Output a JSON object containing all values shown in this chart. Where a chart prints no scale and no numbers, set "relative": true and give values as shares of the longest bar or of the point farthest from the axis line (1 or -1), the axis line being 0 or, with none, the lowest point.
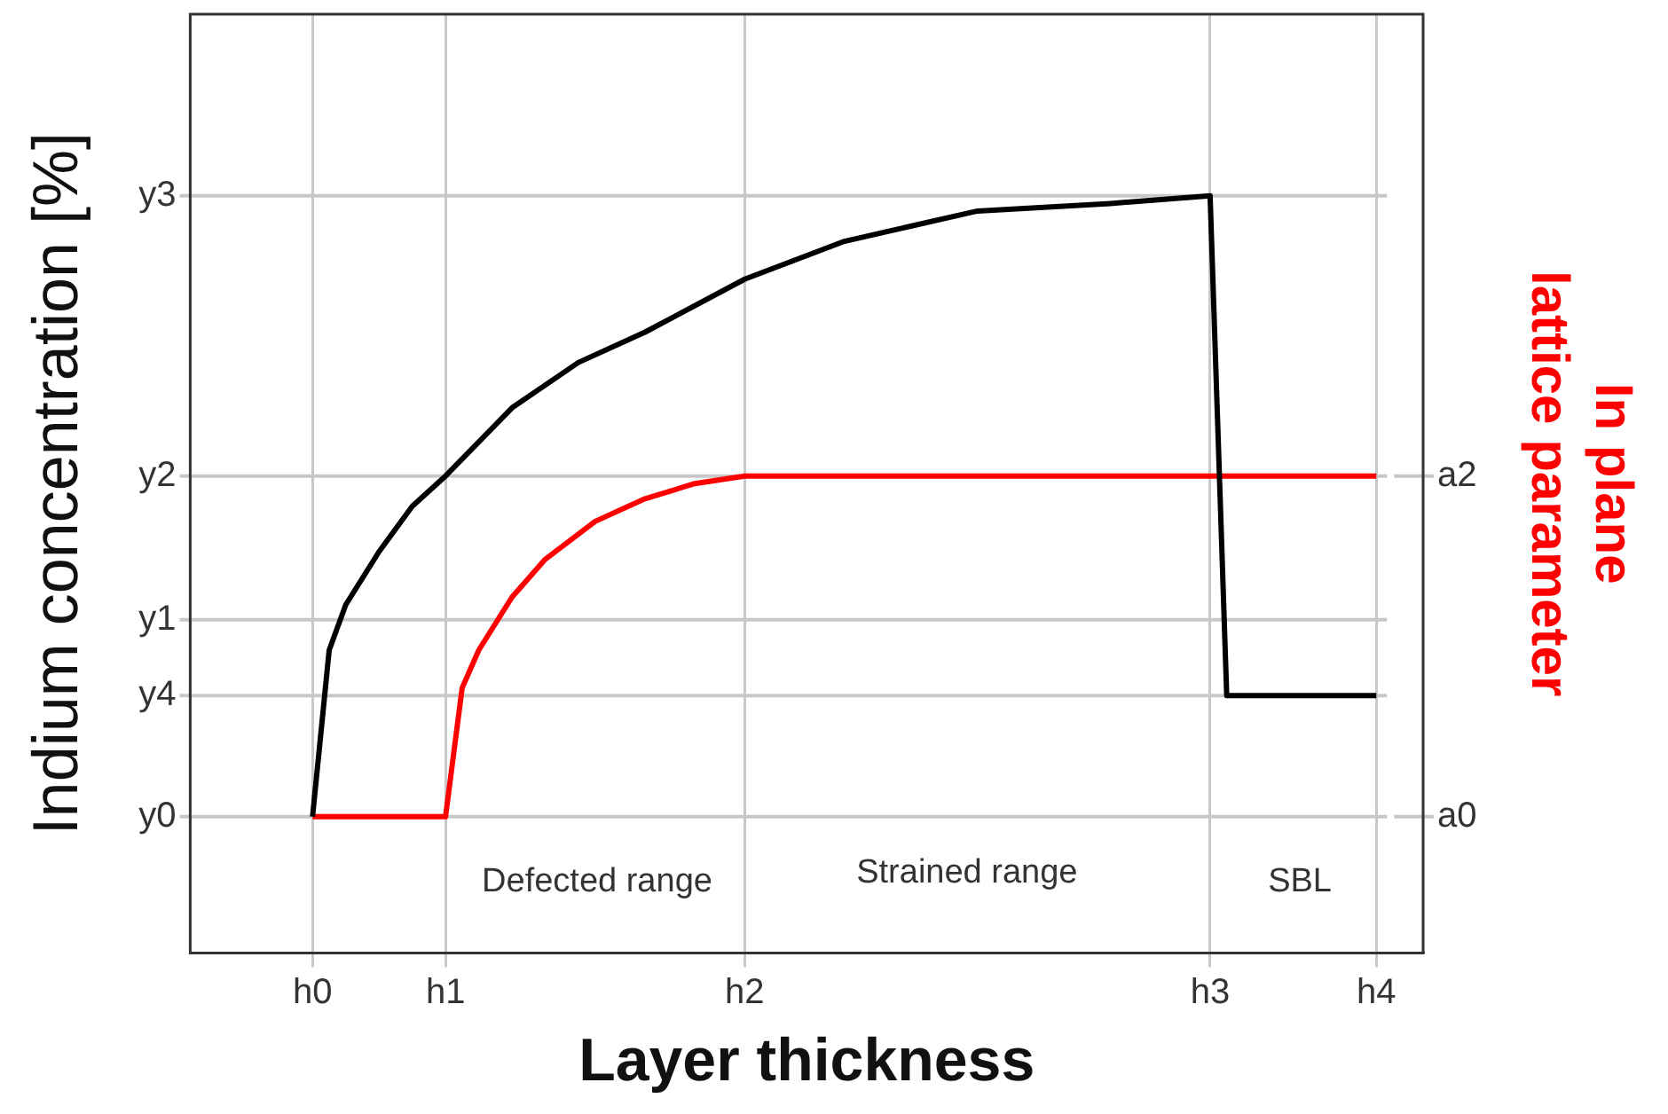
{
  "chart_data": {
    "type": "line",
    "relative": true,
    "xlabel": "Layer thickness",
    "ylabel": "Indium concentration [%]",
    "y2label": "In plane lattice parameter",
    "categories": [
      "h0",
      null,
      null,
      null,
      null,
      null,
      null,
      null,
      "h1",
      null,
      null,
      null,
      null,
      null,
      null,
      null,
      null,
      null,
      null,
      null,
      null,
      null,
      null,
      null,
      null,
      null,
      "h2",
      null,
      null,
      null,
      null,
      null,
      null,
      null,
      null,
      null,
      null,
      null,
      null,
      null,
      null,
      null,
      null,
      null,
      null,
      null,
      null,
      null,
      null,
      null,
      null,
      null,
      null,
      null,
      "h3",
      null,
      null,
      null,
      null,
      null,
      null,
      null,
      null,
      null,
      "h4"
    ],
    "grid": "x",
    "legend": false,
    "marker": "none",
    "line_style": "solid",
    "series": [
      {
        "color": "#000000",
        "values": [
          0.18,
          0.4,
          0.46,
          null,
          0.53,
          null,
          0.59,
          null,
          0.63,
          null,
          null,
          null,
          0.72,
          null,
          null,
          null,
          0.78,
          null,
          null,
          null,
          0.82,
          null,
          null,
          null,
          null,
          null,
          0.89,
          null,
          null,
          null,
          null,
          null,
          0.94,
          null,
          null,
          null,
          null,
          null,
          null,
          null,
          0.98,
          null,
          null,
          null,
          null,
          null,
          null,
          null,
          0.99,
          null,
          null,
          null,
          null,
          null,
          1,
          0.34,
          null,
          null,
          null,
          null,
          null,
          null,
          null,
          null,
          0.34
        ]
      },
      {
        "color": "#ff0000",
        "axis": "y2",
        "values": [
          0.18,
          null,
          null,
          null,
          null,
          null,
          null,
          null,
          0.18,
          0.35,
          0.4,
          null,
          0.47,
          null,
          0.52,
          null,
          null,
          0.57,
          null,
          null,
          0.6,
          null,
          null,
          0.62,
          null,
          null,
          0.63,
          null,
          null,
          null,
          null,
          null,
          null,
          null,
          null,
          null,
          null,
          null,
          null,
          null,
          null,
          null,
          null,
          null,
          null,
          null,
          null,
          null,
          null,
          null,
          null,
          null,
          null,
          null,
          null,
          null,
          null,
          null,
          null,
          null,
          null,
          null,
          null,
          null,
          0.63
        ]
      }
    ],
    "ref_lines": [
      {
        "axis": "y",
        "value": 0.18,
        "label": "y0",
        "color": "#c8c8c8"
      },
      {
        "axis": "y",
        "value": 0.34,
        "label": "y4",
        "color": "#c8c8c8"
      },
      {
        "axis": "y",
        "value": 0.44,
        "label": "y1",
        "color": "#c8c8c8"
      },
      {
        "axis": "y",
        "value": 0.63,
        "label": "y2",
        "color": "#c8c8c8"
      },
      {
        "axis": "y",
        "value": 1,
        "label": "y3",
        "color": "#c8c8c8"
      },
      {
        "axis": "y2",
        "value": 0.18,
        "label": "a0",
        "color": "#c8c8c8"
      },
      {
        "axis": "y2",
        "value": 0.63,
        "label": "a2",
        "color": "#c8c8c8"
      }
    ],
    "annotations": [
      "Defected range",
      "Strained range",
      "SBL"
    ]
  }
}
